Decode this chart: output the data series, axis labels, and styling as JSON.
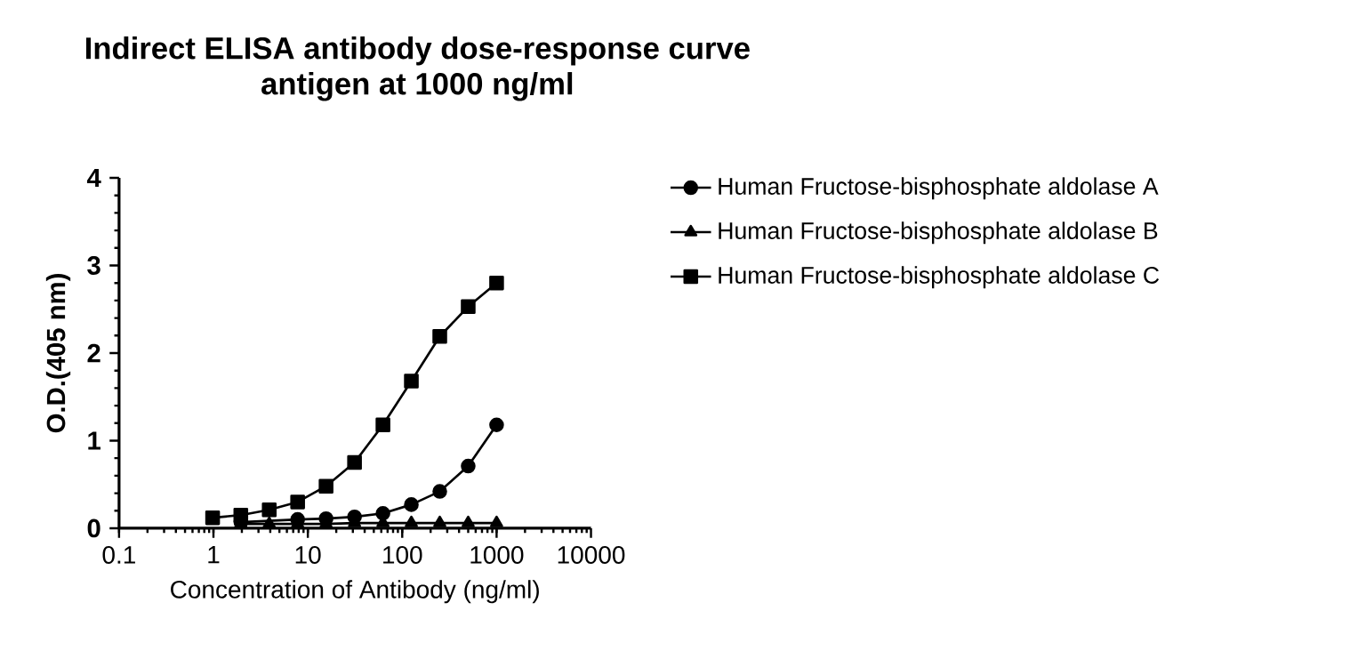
{
  "chart_data": {
    "type": "line",
    "title": "Indirect ELISA antibody dose-response curve",
    "subtitle": "antigen at 1000 ng/ml",
    "xlabel": "Concentration of Antibody (ng/ml)",
    "ylabel": "O.D.(405 nm)",
    "x": [
      0.98,
      1.95,
      3.9,
      7.8,
      15.6,
      31.25,
      62.5,
      125,
      250,
      500,
      1000
    ],
    "series": [
      {
        "name": "Human Fructose-bisphosphate aldolase A",
        "color": "#000000",
        "marker": "circle",
        "values": [
          null,
          0.07,
          null,
          0.1,
          0.11,
          0.13,
          0.17,
          0.27,
          0.42,
          0.71,
          1.18
        ]
      },
      {
        "name": "Human Fructose-bisphosphate aldolase B",
        "color": "#000000",
        "marker": "triangle",
        "values": [
          null,
          0.05,
          0.05,
          0.05,
          0.05,
          0.06,
          0.06,
          0.06,
          0.06,
          0.06,
          0.06
        ]
      },
      {
        "name": "Human Fructose-bisphosphate aldolase C",
        "color": "#000000",
        "marker": "square",
        "values": [
          0.12,
          0.15,
          0.21,
          0.3,
          0.48,
          0.75,
          1.18,
          1.68,
          2.19,
          2.53,
          2.8
        ]
      }
    ],
    "log": "x",
    "xlim": [
      0.1,
      10000
    ],
    "xticks": [
      0.1,
      1,
      10,
      100,
      1000,
      10000
    ],
    "ylim": [
      0,
      4
    ],
    "yticks": [
      0,
      1,
      2,
      3,
      4
    ],
    "grid": false,
    "legend": "right",
    "line_style": "solid"
  }
}
